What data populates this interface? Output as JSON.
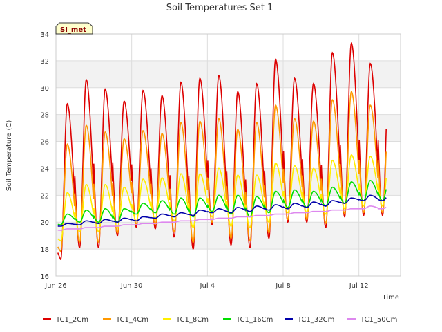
{
  "chart_data": {
    "type": "line",
    "title": "Soil Temperatures Set 1",
    "xlabel": "Time",
    "ylabel": "Soil Temperature (C)",
    "site_label": "SI_met",
    "ylim": [
      16,
      34
    ],
    "yticks": [
      16,
      18,
      20,
      22,
      24,
      26,
      28,
      30,
      32,
      34
    ],
    "xlim_days": [
      0,
      18.2
    ],
    "xticks": [
      {
        "day": 0,
        "label": "Jun 26"
      },
      {
        "day": 4,
        "label": "Jun 30"
      },
      {
        "day": 8,
        "label": "Jul 4"
      },
      {
        "day": 12,
        "label": "Jul 8"
      },
      {
        "day": 16,
        "label": "Jul 12"
      }
    ],
    "grid": true,
    "legend_position": "bottom",
    "series": [
      {
        "name": "TC1_2Cm",
        "color": "#dd0000",
        "mins": [
          17.2,
          18.1,
          18.1,
          19.0,
          19.6,
          19.5,
          18.9,
          18.0,
          19.8,
          18.3,
          18.1,
          18.8,
          20.0,
          20.0,
          19.6,
          20.4,
          20.5
        ],
        "maxs": [
          28.8,
          30.6,
          29.9,
          29.0,
          29.8,
          29.4,
          30.4,
          30.7,
          30.9,
          29.7,
          30.3,
          32.1,
          30.7,
          30.3,
          32.6,
          33.3,
          31.8
        ]
      },
      {
        "name": "TC1_4Cm",
        "color": "#ff9900",
        "mins": [
          17.8,
          18.5,
          18.5,
          19.2,
          19.8,
          19.8,
          19.3,
          18.5,
          20.0,
          18.8,
          18.6,
          19.2,
          20.2,
          20.2,
          19.9,
          20.6,
          20.7
        ],
        "maxs": [
          25.8,
          27.2,
          26.7,
          26.2,
          26.8,
          26.6,
          27.4,
          27.5,
          27.7,
          26.9,
          27.4,
          28.7,
          27.7,
          27.5,
          29.1,
          29.7,
          28.7
        ]
      },
      {
        "name": "TC1_8Cm",
        "color": "#ffee00",
        "mins": [
          18.6,
          19.3,
          19.3,
          19.6,
          20.1,
          20.2,
          20.1,
          19.6,
          20.4,
          19.7,
          19.6,
          20.0,
          20.7,
          20.7,
          20.6,
          21.0,
          21.2
        ],
        "maxs": [
          22.2,
          22.8,
          22.8,
          22.6,
          23.2,
          23.3,
          23.6,
          23.6,
          24.0,
          23.5,
          23.5,
          24.4,
          24.2,
          24.0,
          24.6,
          25.0,
          24.9
        ]
      },
      {
        "name": "TC1_16Cm",
        "color": "#00dd00",
        "mins": [
          19.8,
          20.0,
          20.0,
          20.0,
          20.6,
          20.7,
          20.6,
          20.4,
          20.8,
          20.6,
          20.4,
          20.7,
          21.1,
          21.1,
          21.2,
          21.4,
          21.6
        ],
        "maxs": [
          20.6,
          20.9,
          21.0,
          21.0,
          21.4,
          21.6,
          21.8,
          21.8,
          22.0,
          22.0,
          21.9,
          22.3,
          22.4,
          22.3,
          22.6,
          23.0,
          23.1
        ]
      },
      {
        "name": "TC1_32Cm",
        "color": "#0000aa",
        "mins": [
          19.7,
          19.8,
          19.9,
          20.0,
          20.1,
          20.3,
          20.4,
          20.5,
          20.7,
          20.7,
          20.8,
          20.9,
          21.0,
          21.1,
          21.2,
          21.4,
          21.6
        ],
        "maxs": [
          19.9,
          20.1,
          20.2,
          20.3,
          20.4,
          20.6,
          20.7,
          20.9,
          21.0,
          21.1,
          21.2,
          21.3,
          21.4,
          21.5,
          21.6,
          21.8,
          22.0
        ]
      },
      {
        "name": "TC1_50Cm",
        "color": "#dd88ee",
        "mins": [
          19.4,
          19.5,
          19.6,
          19.7,
          19.8,
          19.9,
          20.0,
          20.1,
          20.2,
          20.3,
          20.4,
          20.5,
          20.6,
          20.7,
          20.8,
          20.9,
          21.0
        ],
        "maxs": [
          19.5,
          19.6,
          19.7,
          19.8,
          19.9,
          20.0,
          20.1,
          20.2,
          20.3,
          20.4,
          20.5,
          20.6,
          20.7,
          20.8,
          20.9,
          21.0,
          21.2
        ]
      }
    ]
  }
}
